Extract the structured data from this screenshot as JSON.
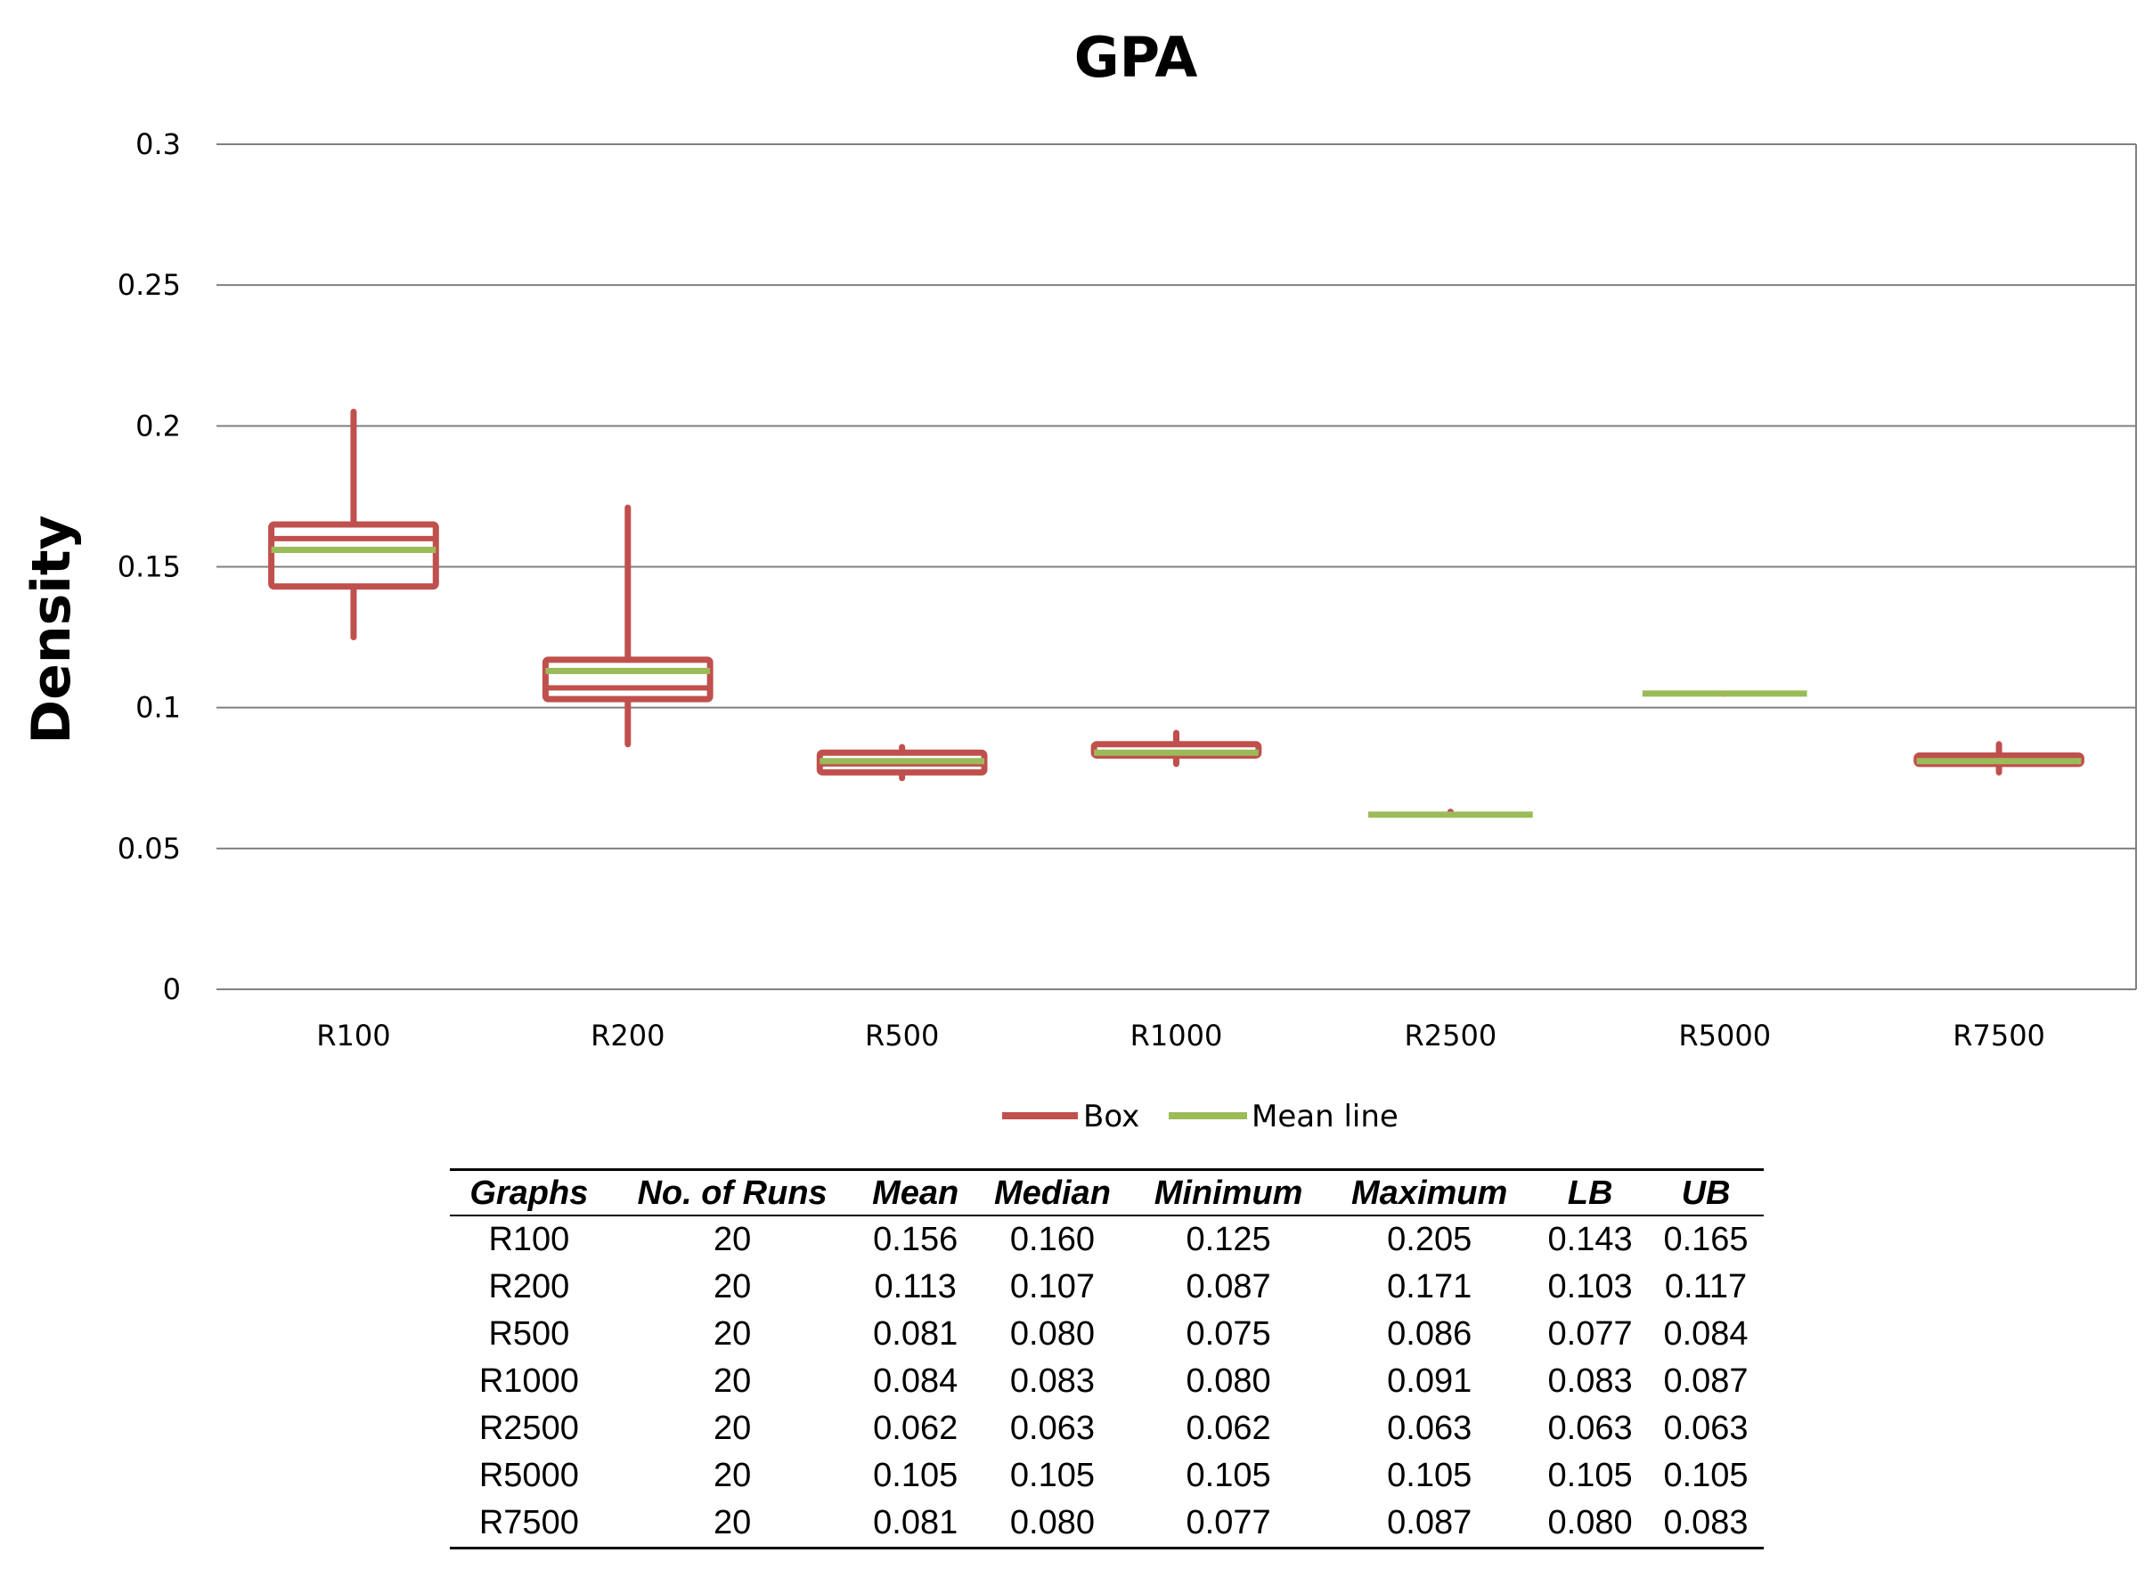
{
  "chart_data": {
    "type": "box",
    "title": "GPA",
    "ylabel": "Density",
    "xlabel": "",
    "ylim": [
      0,
      0.3
    ],
    "yticks": [
      "0",
      "0.05",
      "0.1",
      "0.15",
      "0.2",
      "0.25",
      "0.3"
    ],
    "grid": true,
    "legend_position": "bottom",
    "categories": [
      "R100",
      "R200",
      "R500",
      "R1000",
      "R2500",
      "R5000",
      "R7500"
    ],
    "series": [
      {
        "name": "Box",
        "color": "#c0504d",
        "boxes": [
          {
            "min": 0.125,
            "lb": 0.143,
            "median": 0.16,
            "ub": 0.165,
            "max": 0.205
          },
          {
            "min": 0.087,
            "lb": 0.103,
            "median": 0.107,
            "ub": 0.117,
            "max": 0.171
          },
          {
            "min": 0.075,
            "lb": 0.077,
            "median": 0.08,
            "ub": 0.084,
            "max": 0.086
          },
          {
            "min": 0.08,
            "lb": 0.083,
            "median": 0.083,
            "ub": 0.087,
            "max": 0.091
          },
          {
            "min": 0.062,
            "lb": 0.063,
            "median": 0.063,
            "ub": 0.063,
            "max": 0.063
          },
          {
            "min": 0.105,
            "lb": 0.105,
            "median": 0.105,
            "ub": 0.105,
            "max": 0.105
          },
          {
            "min": 0.077,
            "lb": 0.08,
            "median": 0.08,
            "ub": 0.083,
            "max": 0.087
          }
        ]
      },
      {
        "name": "Mean line",
        "color": "#9bbb59",
        "values": [
          0.156,
          0.113,
          0.081,
          0.084,
          0.062,
          0.105,
          0.081
        ]
      }
    ]
  },
  "table": {
    "headers": [
      "Graphs",
      "No. of Runs",
      "Mean",
      "Median",
      "Minimum",
      "Maximum",
      "LB",
      "UB"
    ],
    "rows": [
      [
        "R100",
        "20",
        "0.156",
        "0.160",
        "0.125",
        "0.205",
        "0.143",
        "0.165"
      ],
      [
        "R200",
        "20",
        "0.113",
        "0.107",
        "0.087",
        "0.171",
        "0.103",
        "0.117"
      ],
      [
        "R500",
        "20",
        "0.081",
        "0.080",
        "0.075",
        "0.086",
        "0.077",
        "0.084"
      ],
      [
        "R1000",
        "20",
        "0.084",
        "0.083",
        "0.080",
        "0.091",
        "0.083",
        "0.087"
      ],
      [
        "R2500",
        "20",
        "0.062",
        "0.063",
        "0.062",
        "0.063",
        "0.063",
        "0.063"
      ],
      [
        "R5000",
        "20",
        "0.105",
        "0.105",
        "0.105",
        "0.105",
        "0.105",
        "0.105"
      ],
      [
        "R7500",
        "20",
        "0.081",
        "0.080",
        "0.077",
        "0.087",
        "0.080",
        "0.083"
      ]
    ]
  }
}
